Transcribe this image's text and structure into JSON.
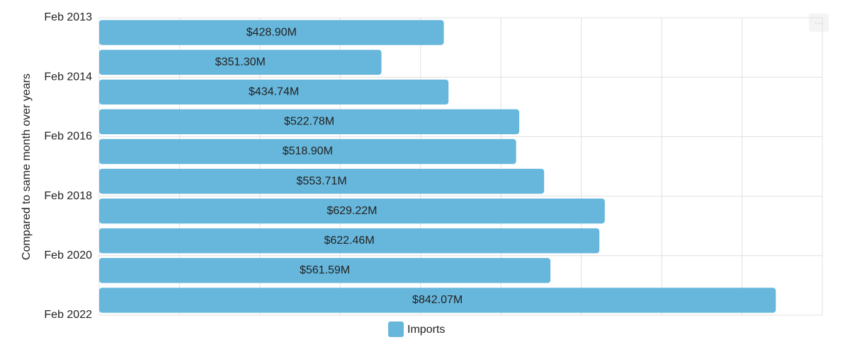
{
  "chart_data": {
    "type": "barh",
    "y_label": "Compared to same month over years",
    "yticks": [
      {
        "value": 0,
        "label": "Feb 2013"
      },
      {
        "value": 2,
        "label": "Feb 2014"
      },
      {
        "value": 4,
        "label": "Feb 2016"
      },
      {
        "value": 6,
        "label": "Feb 2018"
      },
      {
        "value": 8,
        "label": "Feb 2020"
      },
      {
        "value": 10,
        "label": "Feb 2022"
      }
    ],
    "ylim": [
      0,
      10
    ],
    "series": [
      {
        "name": "Imports",
        "color": "#67b7dc",
        "values": [
          428.9,
          351.3,
          434.74,
          522.78,
          518.9,
          553.71,
          629.22,
          622.46,
          561.59,
          842.07
        ],
        "value_labels": [
          "$428.90M",
          "$351.30M",
          "$434.74M",
          "$522.78M",
          "$518.90M",
          "$553.71M",
          "$629.22M",
          "$622.46M",
          "$561.59M",
          "$842.07M"
        ]
      }
    ],
    "xlim": [
      0,
      900
    ],
    "xticks": [
      0,
      100,
      200,
      300,
      400,
      500,
      600,
      700,
      800,
      900
    ],
    "grid": true,
    "menu_button": "···"
  }
}
